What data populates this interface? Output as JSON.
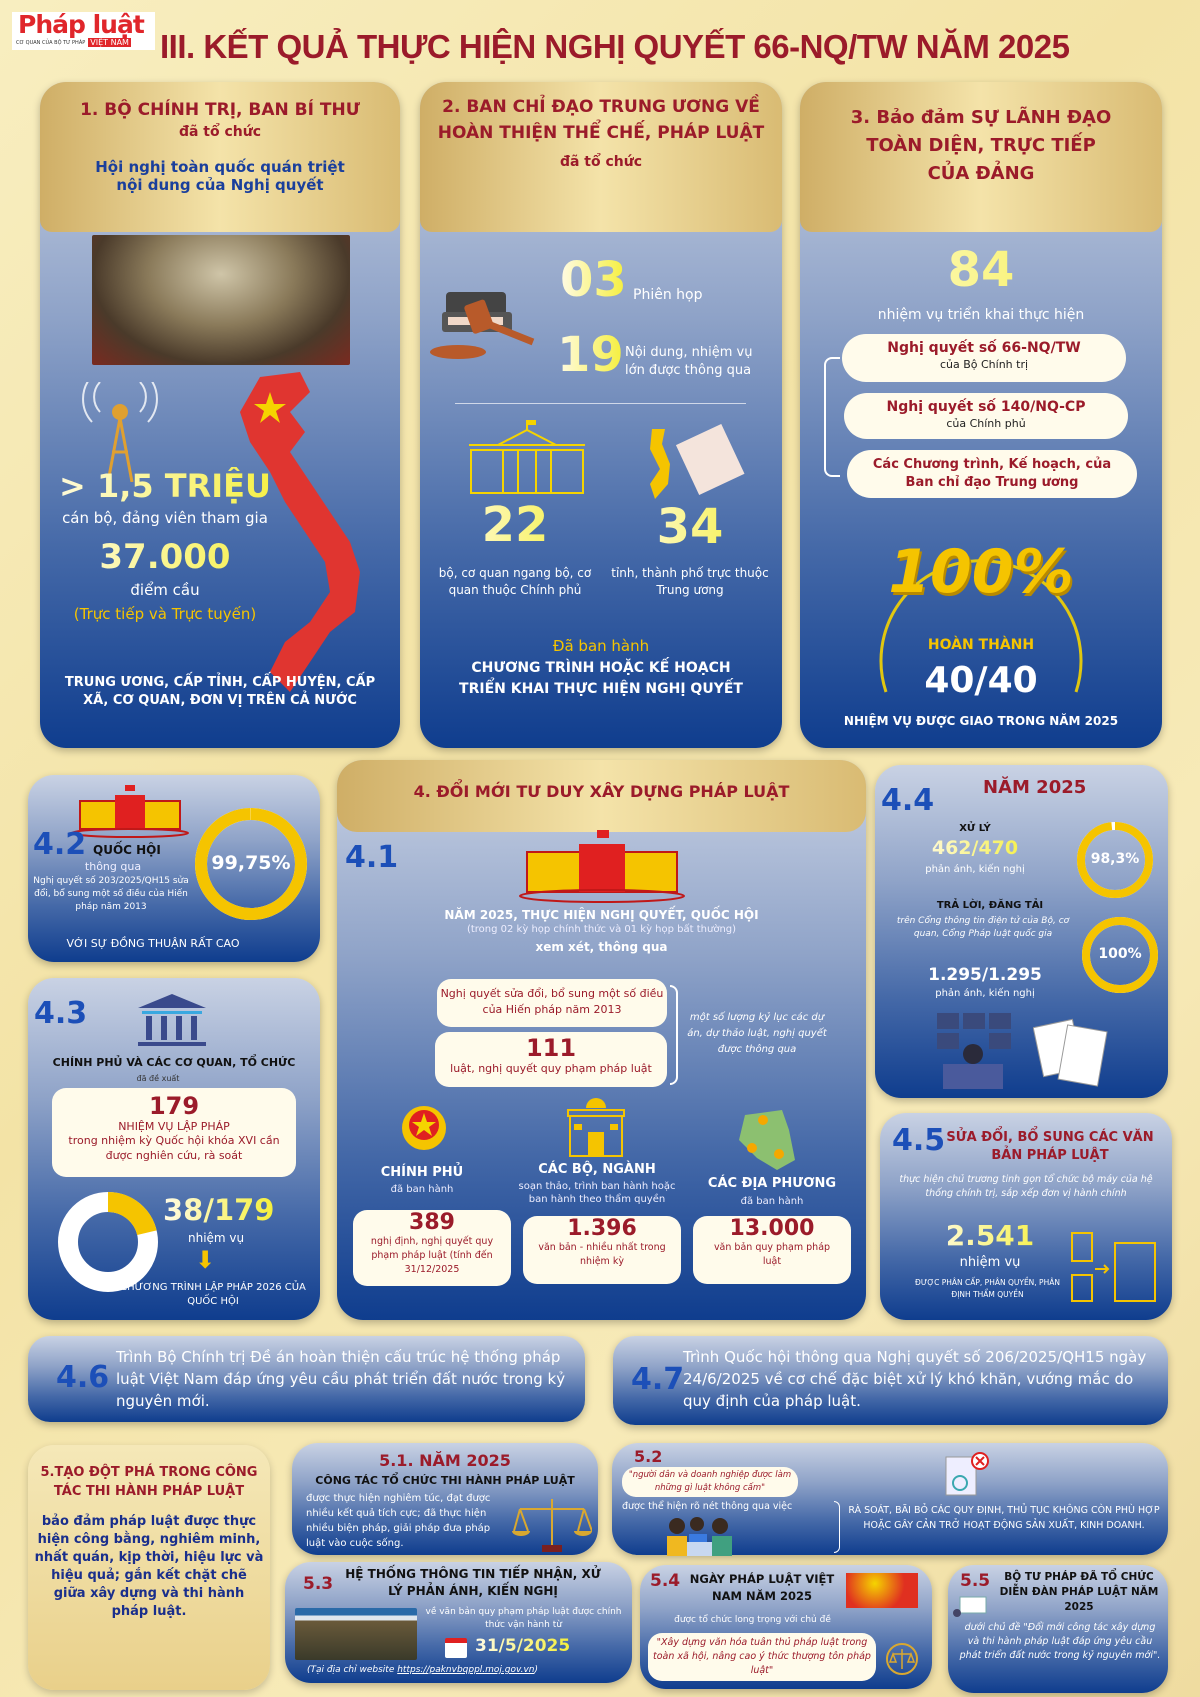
{
  "header": {
    "logo_main": "Pháp luật",
    "logo_sub": "CƠ QUAN CỦA BỘ TƯ PHÁP",
    "logo_country": "VIỆT NAM",
    "title": "III. KẾT QUẢ THỰC HIỆN NGHỊ QUYẾT 66-NQ/TW NĂM 2025"
  },
  "col1": {
    "title": "1. BỘ CHÍNH TRỊ, BAN BÍ THƯ",
    "subtitle": "đã tổ chức",
    "event": "Hội nghị toàn quốc quán triệt nội dung của Nghị quyết",
    "participants": "> 1,5 TRIỆU",
    "participants_label": "cán bộ, đảng viên tham gia",
    "points": "37.000",
    "points_label": "điểm cầu",
    "mode": "(Trực tiếp và Trực tuyến)",
    "scope": "TRUNG ƯƠNG, CẤP TỈNH, CẤP HUYỆN, CẤP XÃ, CƠ QUAN, ĐƠN VỊ TRÊN CẢ NƯỚC"
  },
  "col2": {
    "title": "2. BAN CHỈ ĐẠO TRUNG ƯƠNG VỀ HOÀN THIỆN THỂ CHẾ, PHÁP LUẬT",
    "subtitle": "đã tổ chức",
    "sessions": "03",
    "sessions_label": "Phiên họp",
    "items": "19",
    "items_label": "Nội dung, nhiệm vụ lớn được thông qua",
    "ministries": "22",
    "ministries_label": "bộ, cơ quan ngang bộ, cơ quan thuộc Chính phủ",
    "provinces": "34",
    "provinces_label": "tỉnh, thành phố trực thuộc Trung ương",
    "issued": "Đã ban hành",
    "issued_what": "CHƯƠNG TRÌNH HOẶC KẾ HOẠCH TRIỂN KHAI THỰC HIỆN NGHỊ QUYẾT"
  },
  "col3": {
    "title": "3. Bảo đảm SỰ LÃNH ĐẠO TOÀN DIỆN, TRỰC TIẾP CỦA ĐẢNG",
    "tasks": "84",
    "tasks_label": "nhiệm vụ triển khai thực hiện",
    "sources": [
      {
        "name": "Nghị quyết số 66-NQ/TW",
        "by": "của Bộ Chính trị"
      },
      {
        "name": "Nghị quyết số 140/NQ-CP",
        "by": "của Chính phủ"
      },
      {
        "name": "Các Chương trình, Kế hoạch, của Ban chỉ đạo Trung ương",
        "by": ""
      }
    ],
    "percent": "100%",
    "done_label": "HOÀN THÀNH",
    "done": "40/40",
    "done_caption": "NHIỆM VỤ ĐƯỢC GIAO TRONG NĂM 2025"
  },
  "s42": {
    "num": "4.2",
    "who": "QUỐC HỘI",
    "verb": "thông qua",
    "desc": "Nghị quyết số 203/2025/QH15 sửa đổi, bổ sung một số điều của Hiến pháp năm 2013",
    "percent_label": "99,75%",
    "percent": 99.75,
    "footer": "VỚI SỰ ĐỒNG THUẬN RẤT CAO"
  },
  "s43": {
    "num": "4.3",
    "who": "CHÍNH PHỦ VÀ CÁC CƠ QUAN, TỔ CHỨC",
    "verb": "đã đề xuất",
    "count": "179",
    "count_title": "NHIỆM VỤ LẬP PHÁP",
    "count_desc": "trong nhiệm kỳ Quốc hội khóa XVI cần được nghiên cứu, rà soát",
    "ratio": "38/179",
    "ratio_value": [
      38,
      179
    ],
    "ratio_label": "nhiệm vụ",
    "footer": "CHƯƠNG TRÌNH LẬP PHÁP 2026 CỦA QUỐC HỘI"
  },
  "s4": {
    "title": "4. ĐỔI MỚI TƯ DUY XÂY DỰNG PHÁP LUẬT",
    "num": "4.1",
    "line1": "NĂM 2025, THỰC HIỆN NGHỊ QUYẾT, QUỐC HỘI",
    "line2": "(trong 02 kỳ họp chính thức và 01 kỳ họp bất thường)",
    "line3": "xem xét, thông qua",
    "card1": "Nghị quyết sửa đổi, bổ sung một số điều của Hiến pháp năm 2013",
    "laws": "111",
    "laws_label": "luật, nghị quyết quy phạm pháp luật",
    "note": "một số lượng kỷ lục các dự án, dự thảo luật, nghị quyết được thông qua",
    "groups": [
      {
        "name": "CHÍNH PHỦ",
        "verb": "đã ban hành",
        "value": "389",
        "desc": "nghị định, nghị quyết quy phạm pháp luật (tính đến 31/12/2025"
      },
      {
        "name": "CÁC BỘ, NGÀNH",
        "verb": "soạn thảo, trình ban hành hoặc ban hành theo thẩm quyền",
        "value": "1.396",
        "desc": "văn bản - nhiều nhất trong nhiệm kỳ"
      },
      {
        "name": "CÁC ĐỊA PHƯƠNG",
        "verb": "đã ban hành",
        "value": "13.000",
        "desc": "văn bản quy phạm pháp luật"
      }
    ]
  },
  "s44": {
    "num": "4.4",
    "year": "NĂM 2025",
    "a_title": "XỬ LÝ",
    "a_value": "462/470",
    "a_label": "phản ánh, kiến nghị",
    "a_pct_label": "98,3%",
    "a_pct": 98.3,
    "b_title": "TRẢ LỜI, ĐĂNG TẢI",
    "b_desc": "trên Cổng thông tin điện tử của Bộ, cơ quan, Cổng Pháp luật quốc gia",
    "b_value": "1.295/1.295",
    "b_label": "phản ánh, kiến nghị",
    "b_pct_label": "100%",
    "b_pct": 100
  },
  "s45": {
    "num": "4.5",
    "title": "SỬA ĐỔI, BỔ SUNG CÁC VĂN BẢN PHÁP LUẬT",
    "desc": "thực hiện chủ trương tinh gọn tổ chức bộ máy của hệ thống chính trị, sắp xếp đơn vị hành chính",
    "value": "2.541",
    "label": "nhiệm vụ",
    "footer": "ĐƯỢC PHÂN CẤP, PHÂN QUYỀN, PHÂN ĐỊNH THẨM QUYỀN"
  },
  "s46": {
    "num": "4.6",
    "text": "Trình Bộ Chính trị Đề án hoàn thiện cấu trúc hệ thống pháp luật Việt Nam đáp ứng yêu cầu phát triển đất nước trong kỷ nguyên mới."
  },
  "s47": {
    "num": "4.7",
    "text": "Trình Quốc hội thông qua Nghị quyết số 206/2025/QH15 ngày 24/6/2025 về cơ chế đặc biệt xử lý khó khăn, vướng mắc do quy định của pháp luật."
  },
  "s5": {
    "title": "5.TẠO ĐỘT PHÁ TRONG CÔNG TÁC THI HÀNH PHÁP LUẬT",
    "text": "bảo đảm pháp luật được thực hiện công bằng, nghiêm minh, nhất quán, kịp thời, hiệu lực và hiệu quả; gắn kết chặt chẽ giữa xây dựng và thi hành pháp luật."
  },
  "s51": {
    "title": "5.1. NĂM 2025",
    "sub": "CÔNG TÁC TỔ CHỨC THI HÀNH PHÁP LUẬT",
    "text": "được thực hiện nghiêm túc, đạt được nhiều kết quả tích cực; đã thực hiện nhiều biện pháp, giải pháp đưa pháp luật vào cuộc sống."
  },
  "s52": {
    "num": "5.2",
    "quote": "\"người dân và doanh nghiệp được làm những gì luật không cấm\"",
    "via": "được thể hiện rõ nét thông qua việc",
    "action": "RÀ SOÁT, BÃI BỎ CÁC QUY ĐỊNH, THỦ TỤC KHÔNG CÒN PHÙ HỢP HOẶC GÂY CẢN TRỞ HOẠT ĐỘNG SẢN XUẤT, KINH DOANH."
  },
  "s53": {
    "num": "5.3",
    "title": "HỆ THỐNG THÔNG TIN TIẾP NHẬN, XỬ LÝ PHẢN ÁNH, KIẾN NGHỊ",
    "desc": "về văn bản quy phạm pháp luật được chính thức vận hành từ",
    "date": "31/5/2025",
    "site_prefix": "(Tại địa chỉ website ",
    "site": "https://paknvbqppl.moj.gov.vn",
    "site_suffix": ")"
  },
  "s54": {
    "num": "5.4",
    "title": "NGÀY PHÁP LUẬT VIỆT NAM NĂM 2025",
    "desc": "được tổ chức long trọng với chủ đề",
    "quote": "\"Xây dựng văn hóa tuân thủ pháp luật trong toàn xã hội, nâng cao ý thức thượng tôn pháp luật\""
  },
  "s55": {
    "num": "5.5",
    "title": "BỘ TƯ PHÁP ĐÃ TỔ CHỨC DIỄN ĐÀN PHÁP LUẬT NĂM 2025",
    "text": "dưới chủ đề \"Đổi mới công tác xây dựng và thi hành pháp luật đáp ứng yêu cầu phát triển đất nước trong kỷ nguyên mới\"."
  },
  "colors": {
    "title_red": "#9b1b2a",
    "section_blue": "#1c4fb8",
    "accent_yellow": "#f5c400",
    "panel_navy": "#0f3d8e"
  }
}
